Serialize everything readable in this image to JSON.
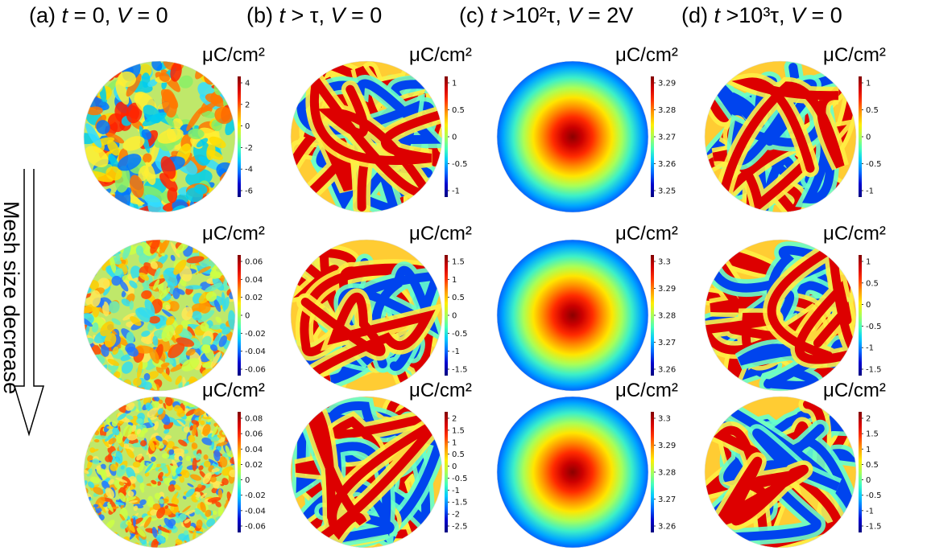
{
  "column_titles": [
    {
      "id": "a",
      "prefix": "(a) ",
      "var1": "t",
      "rel1": " = 0, ",
      "var2": "V",
      "rel2": " = 0"
    },
    {
      "id": "b",
      "prefix": "(b) ",
      "var1": "t",
      "rel1": " > τ, ",
      "var2": "V",
      "rel2": " = 0"
    },
    {
      "id": "c",
      "prefix": "(c) ",
      "var1": "t",
      "rel1": " >10²τ, ",
      "var2": "V",
      "rel2": " = 2V"
    },
    {
      "id": "d",
      "prefix": "(d) ",
      "var1": "t",
      "rel1": " >10³τ, ",
      "var2": "V",
      "rel2": " = 0"
    }
  ],
  "side_label": "Mesh size decrease",
  "colorbar_unit": "μC/cm²",
  "panels": [
    {
      "col": "a",
      "row": 1,
      "pattern": "noise",
      "ticks": [
        "4",
        "2",
        "0",
        "-2",
        "-4",
        "-6"
      ]
    },
    {
      "col": "a",
      "row": 2,
      "pattern": "noise",
      "ticks": [
        "0.06",
        "0.04",
        "0.02",
        "0",
        "-0.02",
        "-0.04",
        "-0.06"
      ]
    },
    {
      "col": "a",
      "row": 3,
      "pattern": "noise",
      "ticks": [
        "0.08",
        "0.06",
        "0.04",
        "0.02",
        "0",
        "-0.02",
        "-0.04",
        "-0.06"
      ]
    },
    {
      "col": "b",
      "row": 1,
      "pattern": "stripes",
      "ticks": [
        "1",
        "0.5",
        "0",
        "-0.5",
        "-1"
      ]
    },
    {
      "col": "b",
      "row": 2,
      "pattern": "stripes",
      "ticks": [
        "1.5",
        "1",
        "0.5",
        "0",
        "-0.5",
        "-1",
        "-1.5"
      ]
    },
    {
      "col": "b",
      "row": 3,
      "pattern": "stripes",
      "ticks": [
        "2",
        "1.5",
        "1",
        "0.5",
        "0",
        "-0.5",
        "-1",
        "-1.5",
        "-2",
        "-2.5"
      ]
    },
    {
      "col": "c",
      "row": 1,
      "pattern": "uniform",
      "ticks": [
        "3.29",
        "3.28",
        "3.27",
        "3.26",
        "3.25"
      ]
    },
    {
      "col": "c",
      "row": 2,
      "pattern": "uniform",
      "ticks": [
        "3.3",
        "3.29",
        "3.28",
        "3.27",
        "3.26"
      ]
    },
    {
      "col": "c",
      "row": 3,
      "pattern": "uniform",
      "ticks": [
        "3.3",
        "3.29",
        "3.28",
        "3.27",
        "3.26"
      ]
    },
    {
      "col": "d",
      "row": 1,
      "pattern": "stripes",
      "ticks": [
        "1",
        "0.5",
        "0",
        "-0.5",
        "-1"
      ]
    },
    {
      "col": "d",
      "row": 2,
      "pattern": "stripes",
      "ticks": [
        "1",
        "0.5",
        "0",
        "-0.5",
        "-1",
        "-1.5"
      ]
    },
    {
      "col": "d",
      "row": 3,
      "pattern": "stripes",
      "ticks": [
        "2",
        "1.5",
        "1",
        "0.5",
        "0",
        "-0.5",
        "-1",
        "-1.5"
      ]
    }
  ],
  "jet_colors": [
    "#7f0000",
    "#d40000",
    "#ff3300",
    "#ff9900",
    "#ffee00",
    "#aaff55",
    "#44ffbb",
    "#00c8ff",
    "#0066ff",
    "#0000cc",
    "#00007f"
  ]
}
